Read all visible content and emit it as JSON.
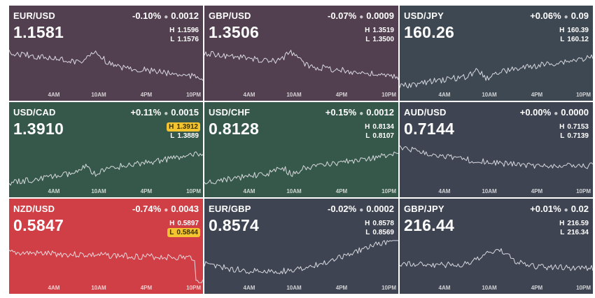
{
  "axis_ticks": [
    "4AM",
    "10AM",
    "4PM",
    "10PM"
  ],
  "tiles": [
    {
      "pair": "EUR/USD",
      "change": "-0.10%",
      "delta": "0.0012",
      "price": "1.1581",
      "high": "1.1596",
      "low": "1.1576",
      "bg": "#524050",
      "highlight": "",
      "trend": "down"
    },
    {
      "pair": "GBP/USD",
      "change": "-0.07%",
      "delta": "0.0009",
      "price": "1.3506",
      "high": "1.3519",
      "low": "1.3500",
      "bg": "#524050",
      "highlight": "",
      "trend": "down"
    },
    {
      "pair": "USD/JPY",
      "change": "+0.06%",
      "delta": "0.09",
      "price": "160.26",
      "high": "160.39",
      "low": "160.12",
      "bg": "#3e4852",
      "highlight": "",
      "trend": "up"
    },
    {
      "pair": "USD/CAD",
      "change": "+0.11%",
      "delta": "0.0015",
      "price": "1.3910",
      "high": "1.3912",
      "low": "1.3889",
      "bg": "#36584a",
      "highlight": "high",
      "trend": "up"
    },
    {
      "pair": "USD/CHF",
      "change": "+0.15%",
      "delta": "0.0012",
      "price": "0.8128",
      "high": "0.8134",
      "low": "0.8107",
      "bg": "#36584a",
      "highlight": "",
      "trend": "up"
    },
    {
      "pair": "AUD/USD",
      "change": "+0.00%",
      "delta": "0.0000",
      "price": "0.7144",
      "high": "0.7153",
      "low": "0.7139",
      "bg": "#3e4452",
      "highlight": "",
      "trend": "flat-down"
    },
    {
      "pair": "NZD/USD",
      "change": "-0.74%",
      "delta": "0.0043",
      "price": "0.5847",
      "high": "0.5897",
      "low": "0.5844",
      "bg": "#cf3f45",
      "highlight": "low",
      "trend": "drop"
    },
    {
      "pair": "EUR/GBP",
      "change": "-0.02%",
      "delta": "0.0002",
      "price": "0.8574",
      "high": "0.8578",
      "low": "0.8569",
      "bg": "#3e4452",
      "highlight": "",
      "trend": "dip-up"
    },
    {
      "pair": "GBP/JPY",
      "change": "+0.01%",
      "delta": "0.02",
      "price": "216.44",
      "high": "216.59",
      "low": "216.34",
      "bg": "#3e4452",
      "highlight": "",
      "trend": "hump"
    }
  ]
}
